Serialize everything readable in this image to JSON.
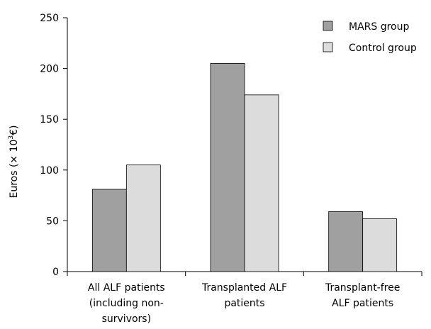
{
  "chart_data": {
    "type": "bar",
    "categories": [
      [
        "All ALF patients",
        "(including non-",
        "survivors)"
      ],
      [
        "Transplanted ALF",
        "patients"
      ],
      [
        "Transplant-free",
        "ALF patients"
      ]
    ],
    "series": [
      {
        "name": "MARS group",
        "values": [
          81,
          205,
          59
        ],
        "color": "#a0a0a0"
      },
      {
        "name": "Control group",
        "values": [
          105,
          174,
          52
        ],
        "color": "#dcdcdc"
      }
    ],
    "ylabel": {
      "text": "Euros (× 10",
      "superscript": "3",
      "unit_suffix": "€)"
    },
    "ylim": [
      0,
      250
    ],
    "yticks": [
      0,
      50,
      100,
      150,
      200,
      250
    ],
    "legend_position": "top-right",
    "grid": false
  }
}
